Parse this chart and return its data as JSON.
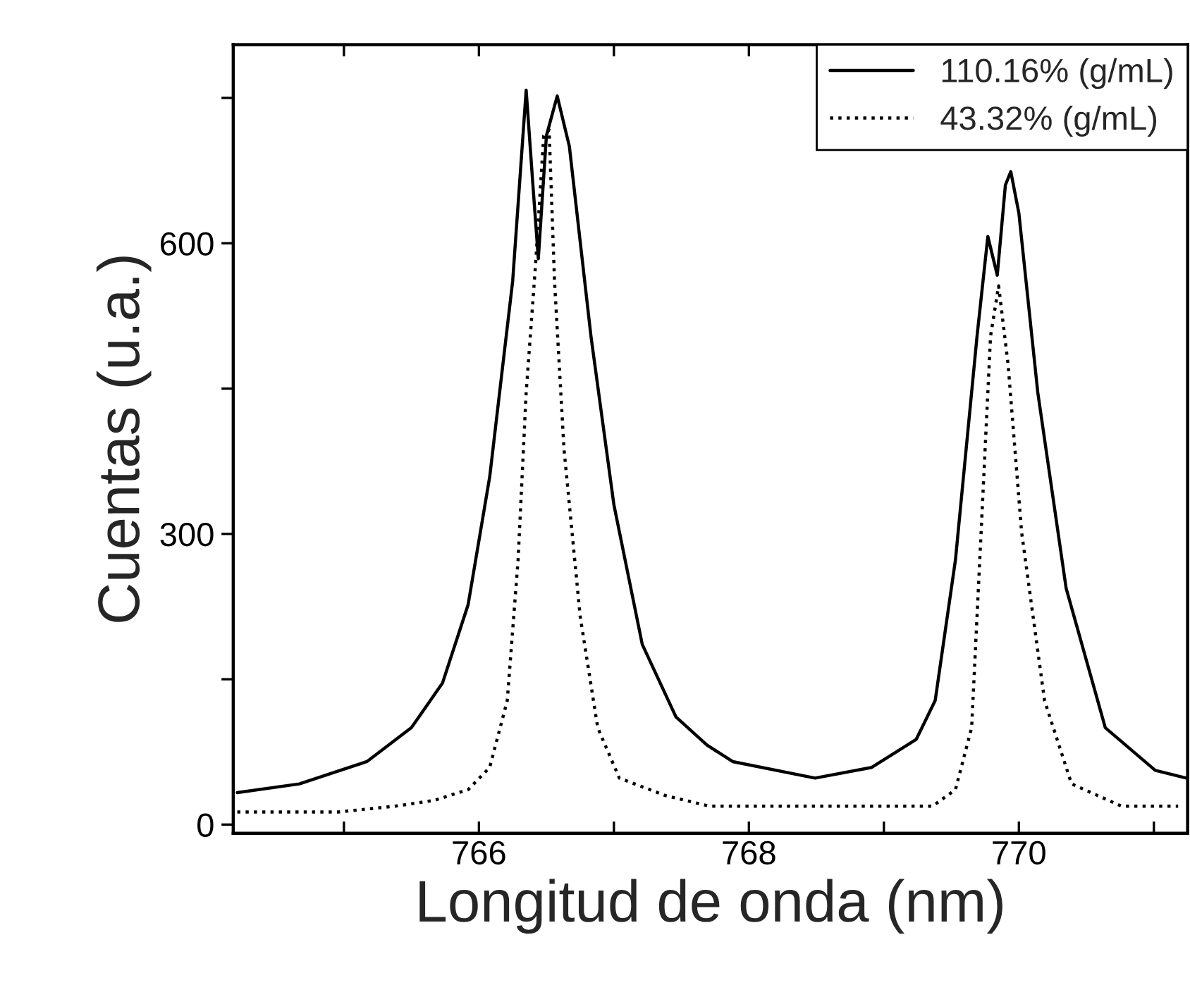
{
  "chart_data": {
    "type": "line",
    "xlabel": "Longitud de onda (nm)",
    "ylabel": "Cuentas (u.a.)",
    "xlim": [
      764.18,
      771.25
    ],
    "xticks": [
      {
        "value": 765,
        "label": null
      },
      766,
      {
        "value": 767,
        "label": null
      },
      768,
      {
        "value": 769,
        "label": null
      },
      770,
      {
        "value": 771,
        "label": null
      }
    ],
    "ylim": [
      -9,
      805
    ],
    "yticks": [
      0,
      {
        "value": 150,
        "label": null
      },
      300,
      {
        "value": 450,
        "label": null
      },
      600,
      {
        "value": 750,
        "label": null
      }
    ],
    "grid": false,
    "legend": "top right",
    "marker": "none",
    "series": [
      {
        "name": "110.16% (g/mL)",
        "color": "#000000",
        "line_style": "solid",
        "x": [
          764.21,
          764.67,
          765.17,
          765.5,
          765.73,
          765.92,
          766.08,
          766.25,
          766.35,
          766.4,
          766.44,
          766.5,
          766.58,
          766.67,
          766.83,
          767.0,
          767.21,
          767.46,
          767.69,
          767.88,
          768.49,
          768.91,
          769.24,
          769.38,
          769.53,
          769.69,
          769.77,
          769.84,
          769.9,
          769.94,
          770.0,
          770.14,
          770.35,
          770.64,
          771.01,
          771.24
        ],
        "values": [
          33,
          42,
          65,
          100,
          146,
          227,
          359,
          561,
          758,
          660,
          584,
          711,
          752,
          700,
          504,
          330,
          186,
          111,
          82,
          65,
          48,
          59,
          88,
          128,
          273,
          504,
          607,
          567,
          660,
          674,
          631,
          446,
          244,
          100,
          56,
          48
        ]
      },
      {
        "name": "43.32% (g/mL)",
        "color": "#000000",
        "line_style": "dotted",
        "x": [
          764.21,
          764.96,
          765.38,
          765.67,
          765.92,
          766.08,
          766.21,
          766.29,
          766.35,
          766.42,
          766.48,
          766.52,
          766.56,
          766.63,
          766.75,
          766.88,
          767.04,
          767.38,
          767.71,
          767.88,
          768.49,
          769.36,
          769.53,
          769.65,
          769.73,
          769.79,
          769.85,
          769.92,
          770.02,
          770.19,
          770.39,
          770.76,
          771.18
        ],
        "values": [
          13,
          13,
          19,
          25,
          36,
          59,
          128,
          273,
          446,
          579,
          711,
          717,
          561,
          388,
          215,
          100,
          48,
          30,
          19,
          19,
          19,
          19,
          36,
          100,
          330,
          504,
          556,
          475,
          302,
          128,
          42,
          19,
          19
        ]
      }
    ]
  }
}
